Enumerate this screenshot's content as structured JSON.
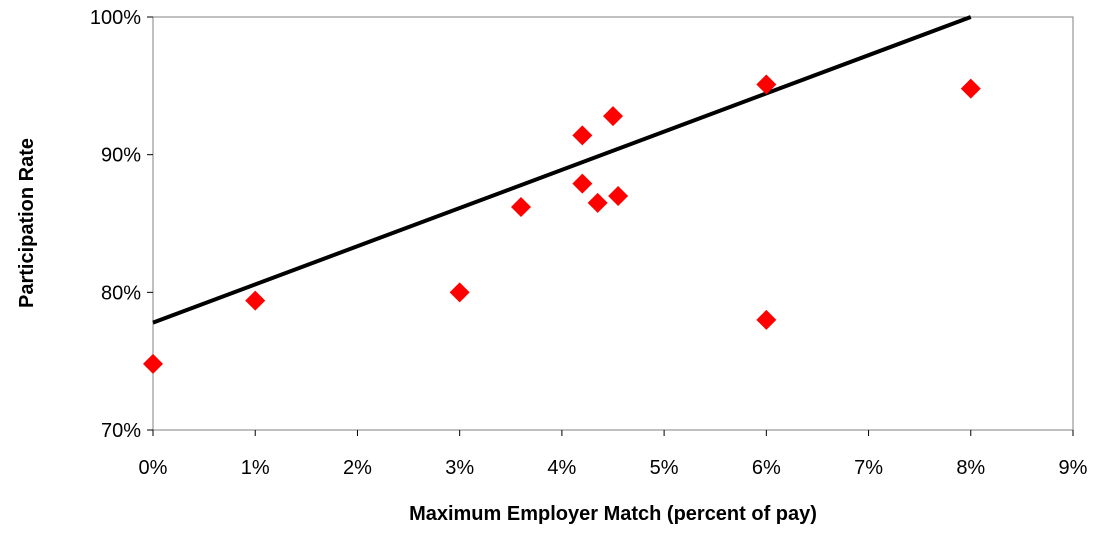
{
  "chart_data": {
    "type": "scatter",
    "title": "",
    "xlabel": "Maximum Employer Match (percent of pay)",
    "ylabel": "Participation Rate",
    "xlim": [
      0,
      9
    ],
    "ylim": [
      70,
      100
    ],
    "x_ticks": [
      0,
      1,
      2,
      3,
      4,
      5,
      6,
      7,
      8,
      9
    ],
    "y_ticks": [
      70,
      80,
      90,
      100
    ],
    "x_tick_labels": [
      "0%",
      "1%",
      "2%",
      "3%",
      "4%",
      "5%",
      "6%",
      "7%",
      "8%",
      "9%"
    ],
    "y_tick_labels": [
      "70%",
      "80%",
      "90%",
      "100%"
    ],
    "grid": false,
    "legend": "none",
    "marker": "diamond",
    "marker_color": "#ff0000",
    "line_color": "#000000",
    "points": [
      {
        "x": 0.0,
        "y": 74.8
      },
      {
        "x": 1.0,
        "y": 79.4
      },
      {
        "x": 3.0,
        "y": 80.0
      },
      {
        "x": 3.6,
        "y": 86.2
      },
      {
        "x": 4.2,
        "y": 91.4
      },
      {
        "x": 4.2,
        "y": 87.9
      },
      {
        "x": 4.35,
        "y": 86.5
      },
      {
        "x": 4.5,
        "y": 92.8
      },
      {
        "x": 4.55,
        "y": 87.0
      },
      {
        "x": 6.0,
        "y": 95.1
      },
      {
        "x": 6.0,
        "y": 78.0
      },
      {
        "x": 8.0,
        "y": 94.8
      }
    ],
    "trendline": {
      "x": [
        0,
        8
      ],
      "y": [
        77.8,
        100
      ]
    }
  }
}
